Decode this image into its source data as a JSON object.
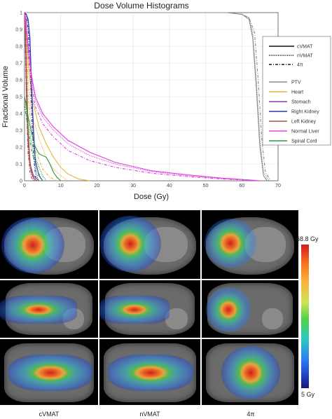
{
  "chart_data": {
    "type": "line",
    "title": "Dose Volume Histograms",
    "xlabel": "Dose (Gy)",
    "ylabel": "Fractional Volume",
    "xlim": [
      0,
      70
    ],
    "ylim": [
      0,
      1
    ],
    "xticks": [
      0,
      10,
      20,
      30,
      40,
      50,
      60,
      70
    ],
    "yticks": [
      0,
      0.1,
      0.2,
      0.3,
      0.4,
      0.5,
      0.6,
      0.7,
      0.8,
      0.9,
      1
    ],
    "ytick_labels": [
      "0",
      "0.1",
      "0.2",
      "0.3",
      "0.4",
      "0.5",
      "0.6",
      "0.7",
      "0.8",
      "0.9",
      "1"
    ],
    "grid": true,
    "legend_position": "right",
    "line_styles": [
      {
        "name": "cVMAT",
        "dash": "solid"
      },
      {
        "name": "nVMAT",
        "dash": "dotted"
      },
      {
        "name": "4π",
        "dash": "dashdot"
      }
    ],
    "structures": [
      {
        "name": "PTV",
        "color": "#8c8c8c"
      },
      {
        "name": "Heart",
        "color": "#e5b43c"
      },
      {
        "name": "Stomach",
        "color": "#8a3fa8"
      },
      {
        "name": "Right Kidney",
        "color": "#2a37a8"
      },
      {
        "name": "Left Kidney",
        "color": "#b05040"
      },
      {
        "name": "Normal Liver",
        "color": "#e040e0"
      },
      {
        "name": "Spinal Cord",
        "color": "#2a9a3a"
      }
    ],
    "series": [
      {
        "structure": "PTV",
        "style": "cVMAT",
        "x": [
          0,
          56,
          60,
          62,
          63,
          64,
          65,
          66,
          67
        ],
        "y": [
          1,
          1,
          0.99,
          0.96,
          0.85,
          0.55,
          0.2,
          0.03,
          0
        ]
      },
      {
        "structure": "PTV",
        "style": "nVMAT",
        "x": [
          0,
          56,
          60,
          62,
          63,
          64,
          65,
          66,
          67.5
        ],
        "y": [
          1,
          1,
          0.99,
          0.97,
          0.88,
          0.6,
          0.25,
          0.05,
          0
        ]
      },
      {
        "structure": "PTV",
        "style": "4π",
        "x": [
          0,
          56,
          60,
          62,
          63.5,
          64.5,
          65.5,
          66.5,
          68
        ],
        "y": [
          1,
          1,
          0.99,
          0.97,
          0.88,
          0.6,
          0.25,
          0.05,
          0
        ]
      },
      {
        "structure": "Heart",
        "style": "cVMAT",
        "x": [
          0,
          0.5,
          1,
          2,
          4,
          6,
          8,
          10,
          12,
          15,
          18
        ],
        "y": [
          1,
          0.95,
          0.7,
          0.5,
          0.32,
          0.22,
          0.14,
          0.08,
          0.04,
          0.01,
          0
        ]
      },
      {
        "structure": "Heart",
        "style": "nVMAT",
        "x": [
          0,
          0.5,
          1,
          2,
          4,
          6,
          8,
          10,
          12
        ],
        "y": [
          1,
          0.9,
          0.6,
          0.4,
          0.25,
          0.14,
          0.07,
          0.03,
          0
        ]
      },
      {
        "structure": "Heart",
        "style": "4π",
        "x": [
          0,
          0.5,
          1,
          2,
          3,
          5,
          7,
          9
        ],
        "y": [
          1,
          0.85,
          0.5,
          0.3,
          0.18,
          0.07,
          0.02,
          0
        ]
      },
      {
        "structure": "Stomach",
        "style": "cVMAT",
        "x": [
          0,
          0.3,
          0.6,
          1,
          1.5,
          2.5,
          4
        ],
        "y": [
          1,
          0.8,
          0.5,
          0.25,
          0.1,
          0.03,
          0
        ]
      },
      {
        "structure": "Stomach",
        "style": "nVMAT",
        "x": [
          0,
          0.3,
          0.6,
          1,
          1.5,
          2.5,
          3.5
        ],
        "y": [
          1,
          0.75,
          0.45,
          0.2,
          0.08,
          0.02,
          0
        ]
      },
      {
        "structure": "Stomach",
        "style": "4π",
        "x": [
          0,
          0.3,
          0.6,
          1,
          2,
          3
        ],
        "y": [
          1,
          0.7,
          0.4,
          0.15,
          0.04,
          0
        ]
      },
      {
        "structure": "Right Kidney",
        "style": "cVMAT",
        "x": [
          0,
          0.5,
          1,
          1.5,
          2,
          2.5,
          3,
          4,
          5
        ],
        "y": [
          1,
          0.99,
          0.96,
          0.85,
          0.55,
          0.3,
          0.12,
          0.03,
          0
        ]
      },
      {
        "structure": "Right Kidney",
        "style": "nVMAT",
        "x": [
          0,
          0.5,
          1,
          1.5,
          2,
          2.5,
          3,
          3.8
        ],
        "y": [
          1,
          0.99,
          0.94,
          0.8,
          0.5,
          0.25,
          0.08,
          0
        ]
      },
      {
        "structure": "Right Kidney",
        "style": "4π",
        "x": [
          0,
          0.5,
          1,
          1.5,
          2,
          2.5,
          3.2
        ],
        "y": [
          1,
          0.98,
          0.9,
          0.7,
          0.4,
          0.15,
          0
        ]
      },
      {
        "structure": "Left Kidney",
        "style": "cVMAT",
        "x": [
          0,
          0.3,
          0.6,
          1,
          1.5,
          2,
          3
        ],
        "y": [
          1,
          0.9,
          0.6,
          0.3,
          0.12,
          0.04,
          0
        ]
      },
      {
        "structure": "Left Kidney",
        "style": "nVMAT",
        "x": [
          0,
          0.3,
          0.6,
          1,
          1.5,
          2.5
        ],
        "y": [
          1,
          0.85,
          0.5,
          0.22,
          0.08,
          0
        ]
      },
      {
        "structure": "Left Kidney",
        "style": "4π",
        "x": [
          0,
          0.3,
          0.6,
          1,
          1.5,
          2.2
        ],
        "y": [
          1,
          0.8,
          0.45,
          0.18,
          0.05,
          0
        ]
      },
      {
        "structure": "Normal Liver",
        "style": "cVMAT",
        "x": [
          0,
          0.5,
          1,
          2,
          3,
          5,
          8,
          12,
          18,
          25,
          35,
          45,
          55,
          62,
          65
        ],
        "y": [
          1,
          0.93,
          0.8,
          0.62,
          0.5,
          0.4,
          0.32,
          0.24,
          0.17,
          0.11,
          0.06,
          0.035,
          0.015,
          0.005,
          0
        ]
      },
      {
        "structure": "Normal Liver",
        "style": "nVMAT",
        "x": [
          0,
          0.5,
          1,
          2,
          3,
          5,
          8,
          12,
          18,
          25,
          35,
          45,
          55,
          62,
          65
        ],
        "y": [
          1,
          0.92,
          0.78,
          0.6,
          0.48,
          0.38,
          0.3,
          0.22,
          0.15,
          0.1,
          0.055,
          0.03,
          0.012,
          0.004,
          0
        ]
      },
      {
        "structure": "Normal Liver",
        "style": "4π",
        "x": [
          0,
          0.5,
          1,
          2,
          3,
          5,
          8,
          12,
          18,
          25,
          35,
          45,
          55,
          62,
          65
        ],
        "y": [
          1,
          0.9,
          0.75,
          0.56,
          0.44,
          0.34,
          0.26,
          0.18,
          0.12,
          0.08,
          0.045,
          0.025,
          0.01,
          0.003,
          0
        ]
      },
      {
        "structure": "Spinal Cord",
        "style": "cVMAT",
        "x": [
          0,
          0.5,
          1,
          2,
          3,
          4,
          6,
          7,
          8,
          9,
          10
        ],
        "y": [
          0.5,
          0.45,
          0.38,
          0.28,
          0.2,
          0.16,
          0.14,
          0.1,
          0.05,
          0.02,
          0
        ]
      },
      {
        "structure": "Spinal Cord",
        "style": "nVMAT",
        "x": [
          0,
          0.5,
          1,
          2,
          3,
          4,
          5,
          6
        ],
        "y": [
          0.48,
          0.42,
          0.34,
          0.22,
          0.14,
          0.08,
          0.03,
          0
        ]
      },
      {
        "structure": "Spinal Cord",
        "style": "4π",
        "x": [
          0,
          0.5,
          1,
          2,
          3,
          4,
          5
        ],
        "y": [
          0.45,
          0.38,
          0.3,
          0.18,
          0.1,
          0.04,
          0
        ]
      }
    ]
  },
  "dose_panel": {
    "columns": [
      "cVMAT",
      "nVMAT",
      "4π"
    ],
    "colorbar_max": "68.8 Gy",
    "colorbar_min": "5 Gy"
  }
}
